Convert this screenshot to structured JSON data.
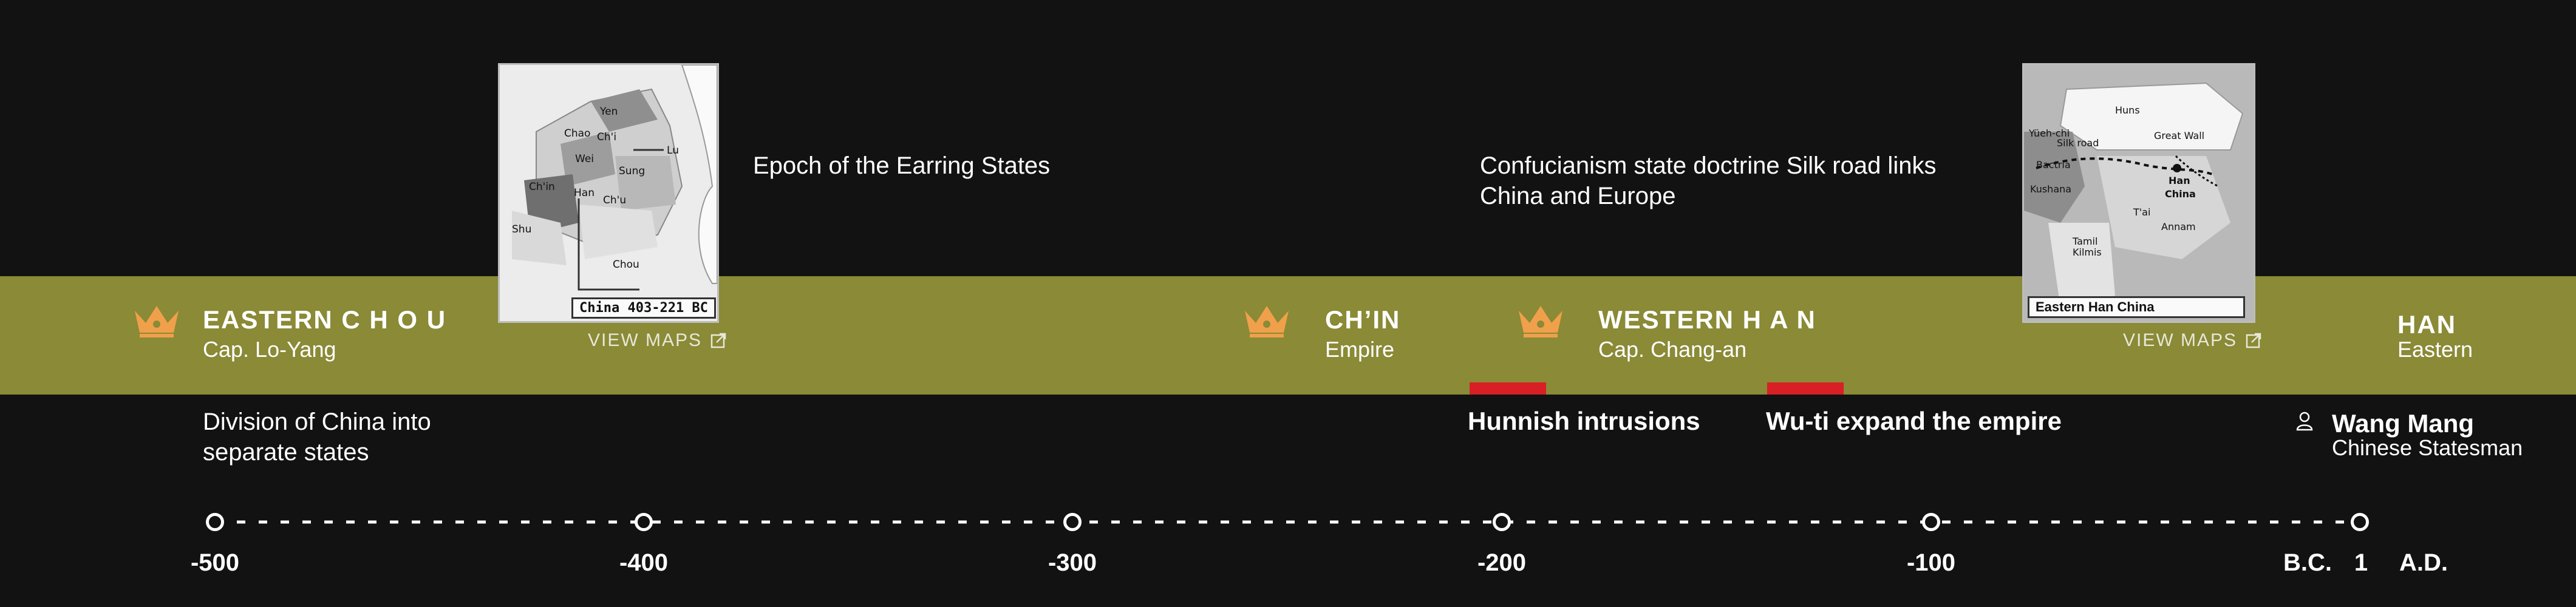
{
  "colors": {
    "background": "#121212",
    "band": "#8a8a37",
    "crown": "#f0a04b",
    "event_marker": "#d81f26"
  },
  "dynasties": {
    "eastern_chou": {
      "name": "EASTERN C H O U",
      "sub": "Cap. Lo-Yang",
      "icon": "crown-icon"
    },
    "chin": {
      "name": "CH’IN",
      "sub": "Empire",
      "icon": "crown-icon"
    },
    "western_han": {
      "name": "WESTERN H A N",
      "sub": "Cap. Chang-an",
      "icon": "crown-icon"
    },
    "han": {
      "name": "HAN",
      "sub": "Eastern"
    }
  },
  "descriptions": {
    "earring_states": "Epoch of the Earring States",
    "confucianism": "Confucianism state doctrine Silk road links China and Europe",
    "division": "Division of China into separate states"
  },
  "events": {
    "hunnish": "Hunnish intrusions",
    "wuti": "Wu-ti expand the empire"
  },
  "person": {
    "name": "Wang Mang",
    "role": "Chinese Statesman",
    "icon": "person-icon"
  },
  "maps": {
    "map1": {
      "caption": "China 403-221 BC",
      "view_label": "VIEW MAPS",
      "labels": {
        "yen": "Yen",
        "chao": "Chao",
        "chi": "Ch'i",
        "lu": "Lu",
        "wei": "Wei",
        "sung": "Sung",
        "chin": "Ch'in",
        "han": "Han",
        "chu": "Ch'u",
        "shu": "Shu",
        "chou": "Chou"
      }
    },
    "map2": {
      "caption": "Eastern Han China",
      "view_label": "VIEW MAPS",
      "labels": {
        "huns": "Huns",
        "yueh_chi": "Yüeh-chi",
        "silk_road": "Silk road",
        "great_wall": "Great Wall",
        "bactria": "Bactria",
        "han": "Han",
        "china": "China",
        "kushana": "Kushana",
        "tai": "T'ai",
        "annam": "Annam",
        "tamil": "Tamil",
        "kilmis": "Kilmis"
      }
    }
  },
  "axis": {
    "ticks": [
      "-500",
      "-400",
      "-300",
      "-200",
      "-100",
      "1"
    ],
    "bc_label": "B.C.",
    "ad_label": "A.D."
  }
}
